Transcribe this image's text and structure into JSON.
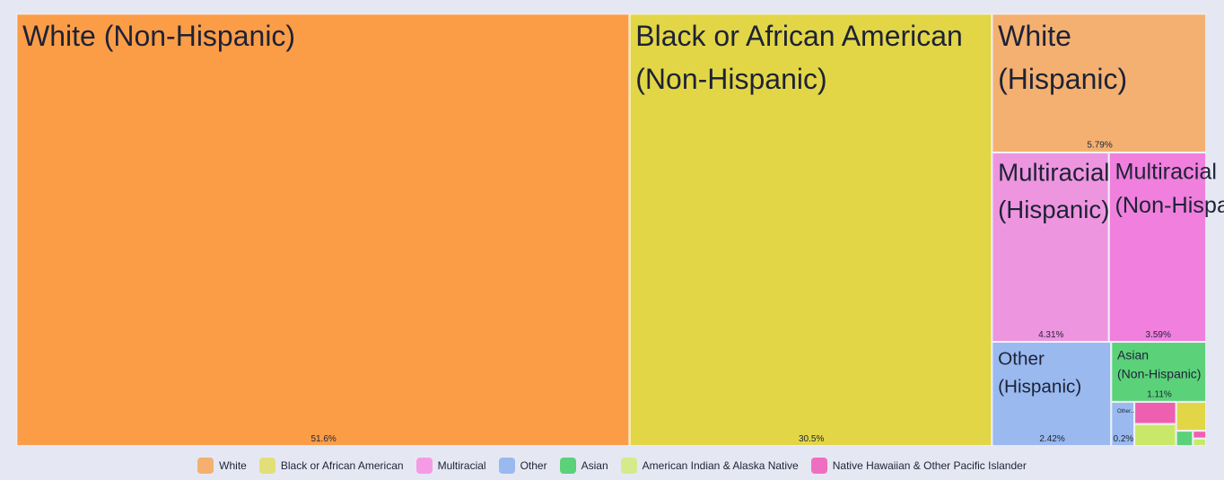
{
  "chart_data": {
    "type": "treemap",
    "labels": [
      "White (Non-Hispanic)",
      "Black or African American (Non-Hispanic)",
      "White (Hispanic)",
      "Multiracial (Hispanic)",
      "Multiracial (Non-Hispanic)",
      "Other (Hispanic)",
      "Asian (Non-Hispanic)",
      "Other...",
      null,
      null,
      null,
      null,
      null,
      null
    ],
    "values": [
      51.6,
      30.5,
      5.79,
      4.31,
      3.59,
      2.42,
      1.11,
      0.2,
      0.18,
      0.18,
      0.17,
      0.05,
      0.02,
      0.02
    ],
    "value_labels": [
      "51.6%",
      "30.5%",
      "5.79%",
      "4.31%",
      "3.59%",
      "2.42%",
      "1.11%",
      "0.2%",
      null,
      null,
      null,
      null,
      null,
      null
    ],
    "colors": [
      "#fb9d47",
      "#e2d646",
      "#f4b070",
      "#ee95e0",
      "#f07fdd",
      "#99b9ef",
      "#5bd17a",
      "#99b9ef",
      "#ee5fb0",
      "#c9e86a",
      "#e2d646",
      "#5bd17a",
      "#ee5fb0",
      "#c9e86a"
    ],
    "legend": [
      {
        "name": "White",
        "color": "#f4b070"
      },
      {
        "name": "Black or African American",
        "color": "#e3df78"
      },
      {
        "name": "Multiracial",
        "color": "#f59be5"
      },
      {
        "name": "Other",
        "color": "#99b9ef"
      },
      {
        "name": "Asian",
        "color": "#5bd17a"
      },
      {
        "name": "American Indian & Alaska Native",
        "color": "#d5ea8a"
      },
      {
        "name": "Native Hawaiian & Other Pacific Islander",
        "color": "#ee6fc0"
      }
    ]
  }
}
